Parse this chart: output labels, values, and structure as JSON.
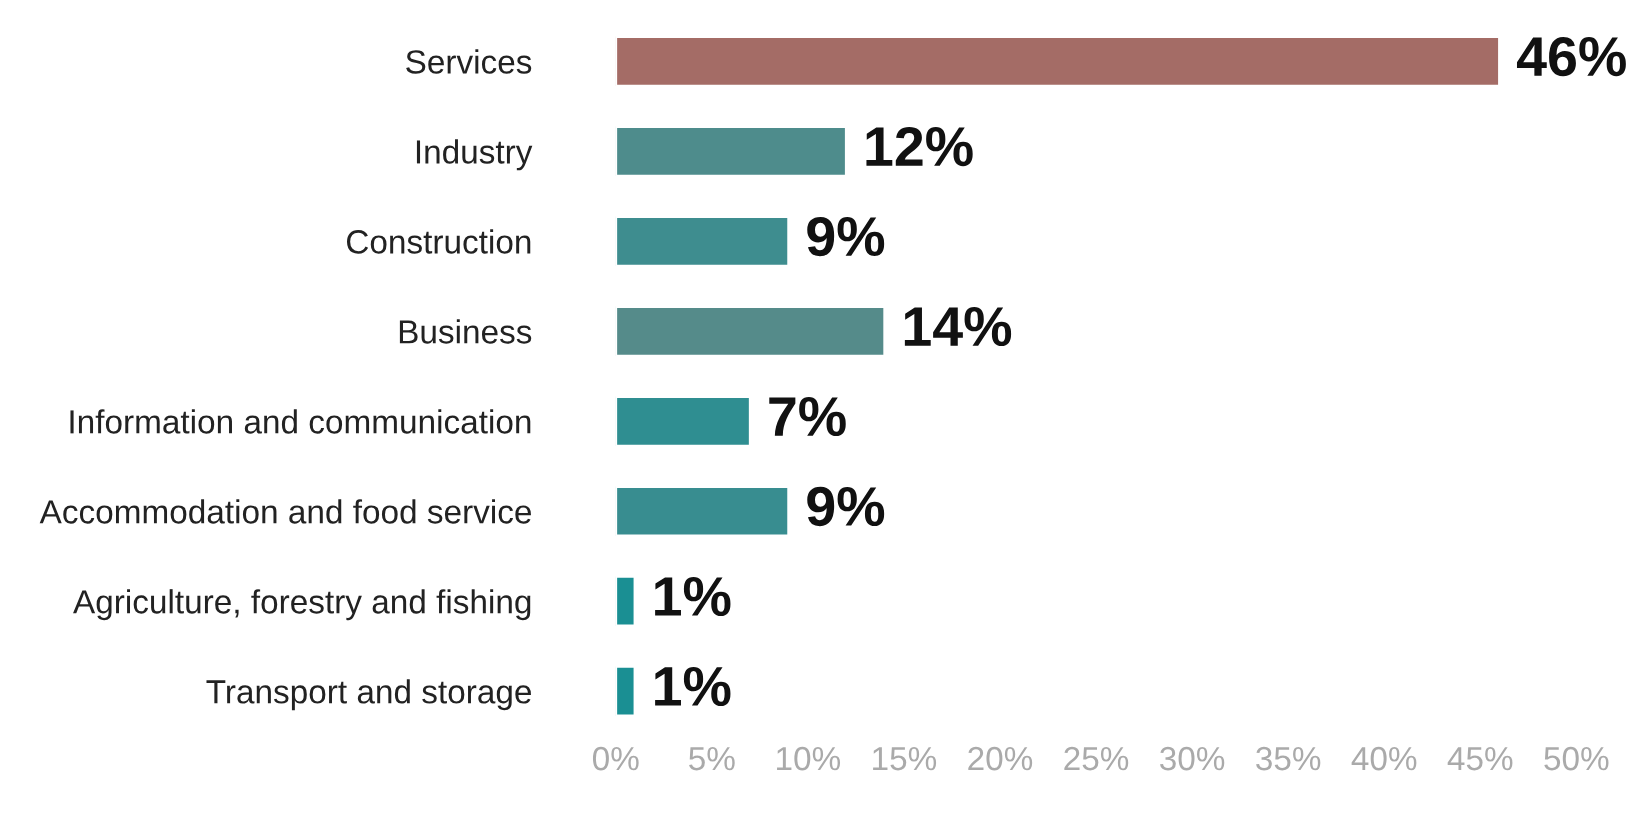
{
  "chart_data": {
    "type": "bar",
    "orientation": "horizontal",
    "categories": [
      "Services",
      "Industry",
      "Construction",
      "Business",
      "Information and communication",
      "Accommodation and food service",
      "Agriculture, forestry and fishing",
      "Transport and storage"
    ],
    "values": [
      46,
      12,
      9,
      14,
      7,
      9,
      1,
      1
    ],
    "colors": [
      "#a46c66",
      "#4e8c8c",
      "#3e8d8f",
      "#558b8a",
      "#2f8e91",
      "#388d90",
      "#1a8f93",
      "#1a8f93"
    ],
    "value_labels": [
      "46%",
      "12%",
      "9%",
      "14%",
      "7%",
      "9%",
      "1%",
      "1%"
    ],
    "xlim": [
      0,
      50
    ],
    "xticks": [
      {
        "value": 0,
        "label": "0%"
      },
      {
        "value": 5,
        "label": "5%"
      },
      {
        "value": 10,
        "label": "10%"
      },
      {
        "value": 15,
        "label": "15%"
      },
      {
        "value": 20,
        "label": "20%"
      },
      {
        "value": 25,
        "label": "25%"
      },
      {
        "value": 30,
        "label": "30%"
      },
      {
        "value": 35,
        "label": "35%"
      },
      {
        "value": 40,
        "label": "40%"
      },
      {
        "value": 45,
        "label": "45%"
      },
      {
        "value": 50,
        "label": "50%"
      }
    ],
    "grid": false,
    "legend": false
  }
}
